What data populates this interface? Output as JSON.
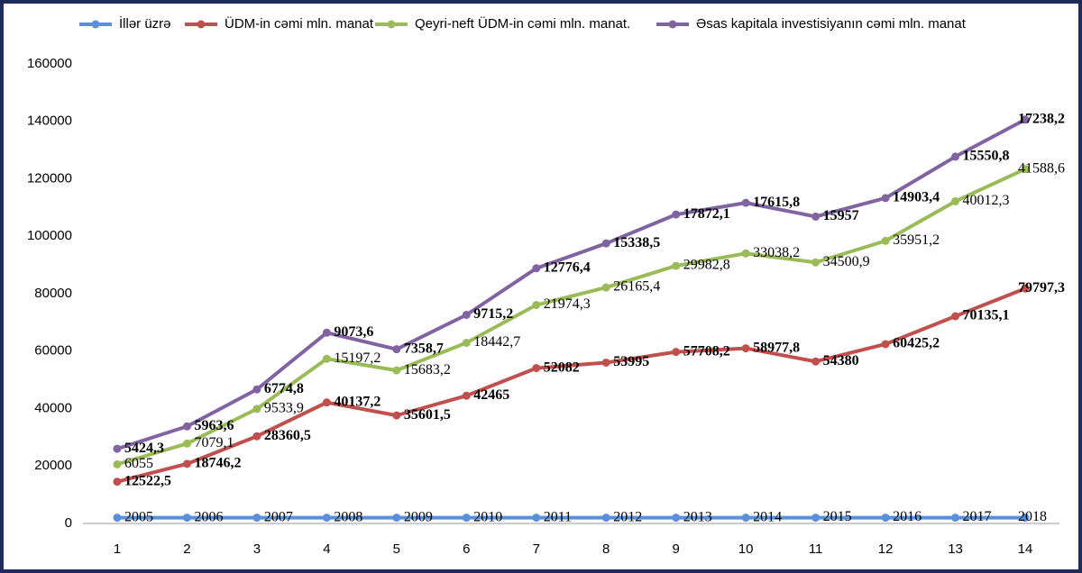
{
  "chart_data": {
    "type": "line",
    "stacked": true,
    "categories": [
      "1",
      "2",
      "3",
      "4",
      "5",
      "6",
      "7",
      "8",
      "9",
      "10",
      "11",
      "12",
      "13",
      "14"
    ],
    "ylim": [
      0,
      160000
    ],
    "yticks": [
      0,
      20000,
      40000,
      60000,
      80000,
      100000,
      120000,
      140000,
      160000
    ],
    "grid": false,
    "legend": "top",
    "series": [
      {
        "name": "İllər üzrə",
        "color": "#5b8fd9",
        "label_bold": false,
        "values": [
          2005,
          2006,
          2007,
          2008,
          2009,
          2010,
          2011,
          2012,
          2013,
          2014,
          2015,
          2016,
          2017,
          2018
        ]
      },
      {
        "name": "ÜDM-in cəmi mln. manat",
        "color": "#c0504d",
        "label_bold": true,
        "values": [
          12522.5,
          18746.2,
          28360.5,
          40137.2,
          35601.5,
          42465,
          52082,
          53995,
          57708.2,
          58977.8,
          54380,
          60425.2,
          70135.1,
          79797.3
        ],
        "value_labels": [
          "12522,5",
          "18746,2",
          "28360,5",
          "40137,2",
          "35601,5",
          "42465",
          "52082",
          "53995",
          "57708,2",
          "58977,8",
          "54380",
          "60425,2",
          "70135,1",
          "79797,3"
        ]
      },
      {
        "name": "Qeyri-neft ÜDM-in cəmi mln. manat.",
        "color": "#9bbb59",
        "label_bold": false,
        "values": [
          6055,
          7079.1,
          9533.9,
          15197.2,
          15683.2,
          18442.7,
          21974.3,
          26165.4,
          29982.8,
          33038.2,
          34500.9,
          35951.2,
          40012.3,
          41588.6
        ],
        "value_labels": [
          "6055",
          "7079,1",
          "9533,9",
          "15197,2",
          "15683,2",
          "18442,7",
          "21974,3",
          "26165,4",
          "29982,8",
          "33038,2",
          "34500,9",
          "35951,2",
          "40012,3",
          "41588,6"
        ]
      },
      {
        "name": "Əsas kapitala investisiyanın cəmi mln. manat",
        "color": "#8064a2",
        "label_bold": true,
        "values": [
          5424.3,
          5963.6,
          6774.8,
          9073.6,
          7358.7,
          9715.2,
          12776.4,
          15338.5,
          17872.1,
          17615.8,
          15957,
          14903.4,
          15550.8,
          17238.2
        ],
        "value_labels": [
          "5424,3",
          "5963,6",
          "6774,8",
          "9073,6",
          "7358,7",
          "9715,2",
          "12776,4",
          "15338,5",
          "17872,1",
          "17615,8",
          "15957",
          "14903,4",
          "15550,8",
          "17238,2"
        ]
      }
    ]
  }
}
